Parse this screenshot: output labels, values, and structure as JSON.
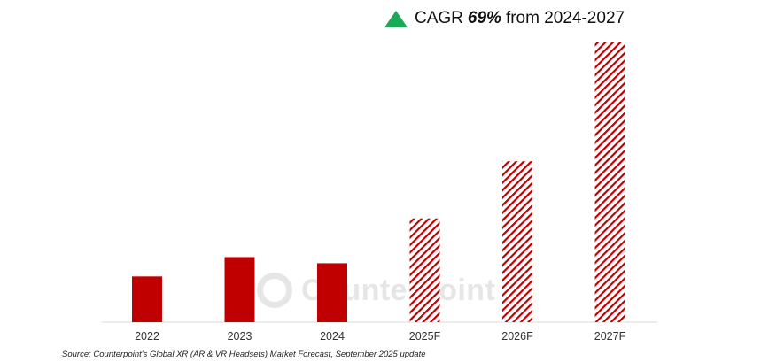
{
  "header": {
    "prefix": "CAGR",
    "highlight": "69%",
    "suffix": "from 2024-2027",
    "icon": "triangle-up-icon",
    "icon_color": "#1aaa55"
  },
  "watermark": "Counterpoint",
  "source": "Source: Counterpoint's Global XR (AR & VR Headsets) Market Forecast, September 2025 update",
  "chart_data": {
    "type": "bar",
    "categories": [
      "2022",
      "2023",
      "2024",
      "2025F",
      "2026F",
      "2027F"
    ],
    "values": [
      52,
      74,
      67,
      118,
      183,
      318
    ],
    "forecast": [
      false,
      false,
      false,
      true,
      true,
      true
    ],
    "title": "CAGR 69% from 2024-2027",
    "xlabel": "",
    "ylabel": "",
    "ylim": [
      0,
      320
    ],
    "grid": false,
    "colors": {
      "actual": "#c00000",
      "forecast_hatch": "#c00000"
    }
  }
}
